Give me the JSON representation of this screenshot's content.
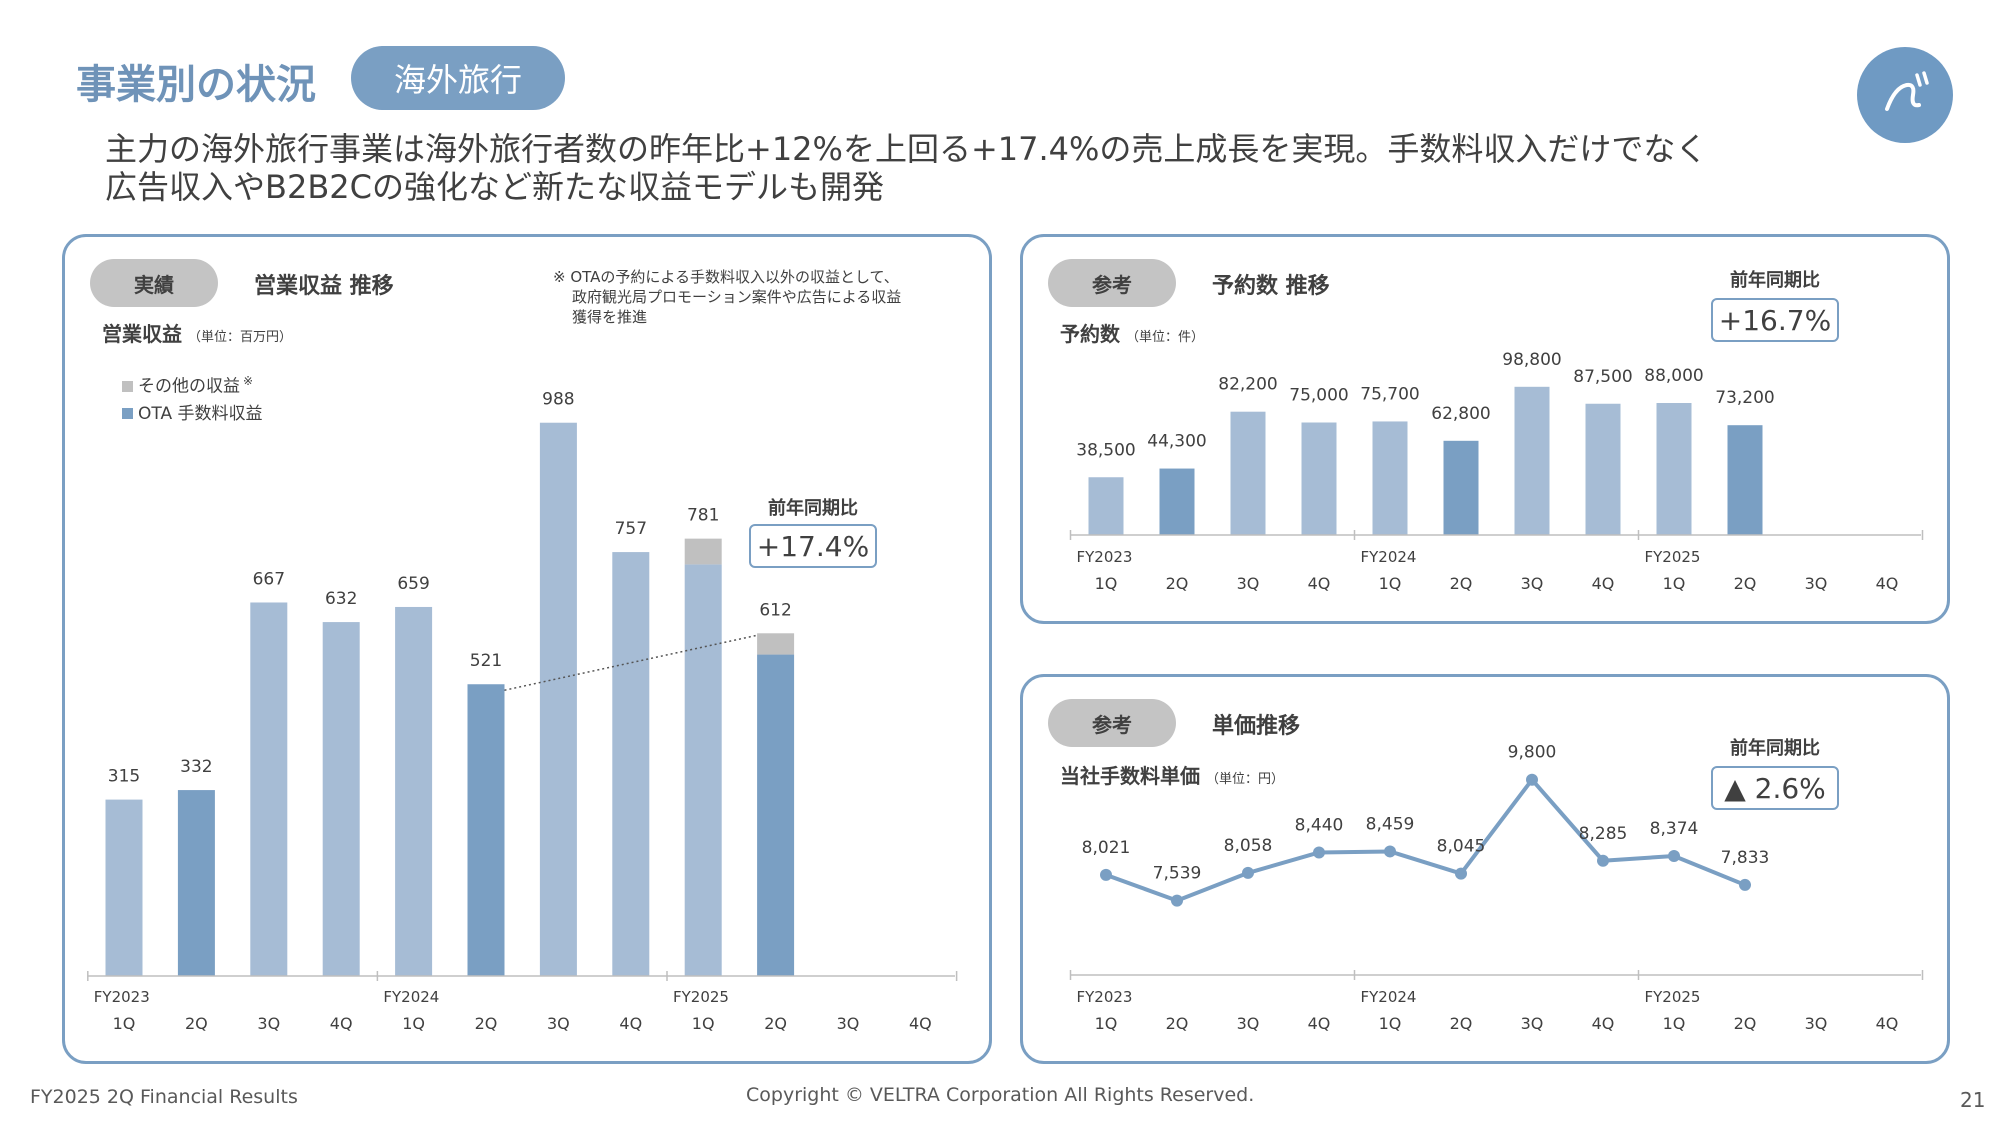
{
  "header": {
    "title": "事業別の状況",
    "tag": "海外旅行",
    "headline_line1": "主力の海外旅行事業は海外旅行者数の昨年比+12%を上回る+17.4%の売上成長を実現。手数料収入だけでなく",
    "headline_line2": "広告収入やB2B2Cの強化など新たな収益モデルも開発"
  },
  "revenue_panel": {
    "pill": "実績",
    "title": "営業収益 推移",
    "subtitle": "営業収益",
    "unit": "（単位：百万円）",
    "note_line1": "※ OTAの予約による手数料収入以外の収益として、",
    "note_line2": "政府観光局プロモーション案件や広告による収益",
    "note_line3": "獲得を推進",
    "legend_other": "その他の収益",
    "legend_other_mark": "※",
    "legend_ota": "OTA 手数料収益",
    "yoy_label": "前年同期比",
    "yoy_value": "+17.4%"
  },
  "bookings_panel": {
    "pill": "参考",
    "title": "予約数 推移",
    "subtitle": "予約数",
    "unit": "（単位：件）",
    "yoy_label": "前年同期比",
    "yoy_value": "+16.7%"
  },
  "price_panel": {
    "pill": "参考",
    "title": "単価推移",
    "subtitle": "当社手数料単価",
    "unit": "（単位：円）",
    "yoy_label": "前年同期比",
    "yoy_value": "▲ 2.6%"
  },
  "footer": {
    "left": "FY2025 2Q Financial Results",
    "center": "Copyright © VELTRA Corporation All Rights Reserved.",
    "page": "21"
  },
  "colors": {
    "bar_light": "#a6bcd5",
    "bar_dark": "#7a9fc3",
    "other_gray": "#c0c0c0",
    "accent": "#7a9fc3"
  },
  "chart_data": [
    {
      "id": "revenue",
      "type": "bar",
      "fiscal_years": [
        "FY2023",
        "FY2024",
        "FY2025"
      ],
      "categories": [
        "1Q",
        "2Q",
        "3Q",
        "4Q",
        "1Q",
        "2Q",
        "3Q",
        "4Q",
        "1Q",
        "2Q",
        "3Q",
        "4Q"
      ],
      "totals": [
        315,
        332,
        667,
        632,
        659,
        521,
        988,
        757,
        781,
        612,
        null,
        null
      ],
      "series": [
        {
          "name": "OTA 手数料収益",
          "values": [
            315,
            332,
            667,
            632,
            659,
            521,
            988,
            757,
            735,
            574,
            null,
            null
          ]
        },
        {
          "name": "その他の収益",
          "values": [
            0,
            0,
            0,
            0,
            0,
            0,
            0,
            0,
            46,
            38,
            null,
            null
          ]
        }
      ],
      "highlighted_index": [
        1,
        5,
        9
      ],
      "ylim": [
        0,
        1000
      ]
    },
    {
      "id": "bookings",
      "type": "bar",
      "fiscal_years": [
        "FY2023",
        "FY2024",
        "FY2025"
      ],
      "categories": [
        "1Q",
        "2Q",
        "3Q",
        "4Q",
        "1Q",
        "2Q",
        "3Q",
        "4Q",
        "1Q",
        "2Q",
        "3Q",
        "4Q"
      ],
      "values": [
        38500,
        44300,
        82200,
        75000,
        75700,
        62800,
        98800,
        87500,
        88000,
        73200,
        null,
        null
      ],
      "labels": [
        "38,500",
        "44,300",
        "82,200",
        "75,000",
        "75,700",
        "62,800",
        "98,800",
        "87,500",
        "88,000",
        "73,200"
      ],
      "highlighted_index": [
        1,
        5,
        9
      ],
      "ylim": [
        0,
        100000
      ]
    },
    {
      "id": "unit_price",
      "type": "line",
      "fiscal_years": [
        "FY2023",
        "FY2024",
        "FY2025"
      ],
      "categories": [
        "1Q",
        "2Q",
        "3Q",
        "4Q",
        "1Q",
        "2Q",
        "3Q",
        "4Q",
        "1Q",
        "2Q",
        "3Q",
        "4Q"
      ],
      "values": [
        8021,
        7539,
        8058,
        8440,
        8459,
        8045,
        9800,
        8285,
        8374,
        7833,
        null,
        null
      ],
      "labels": [
        "8,021",
        "7,539",
        "8,058",
        "8,440",
        "8,459",
        "8,045",
        "9,800",
        "8,285",
        "8,374",
        "7,833"
      ],
      "ylim": [
        5000,
        10500
      ]
    }
  ]
}
